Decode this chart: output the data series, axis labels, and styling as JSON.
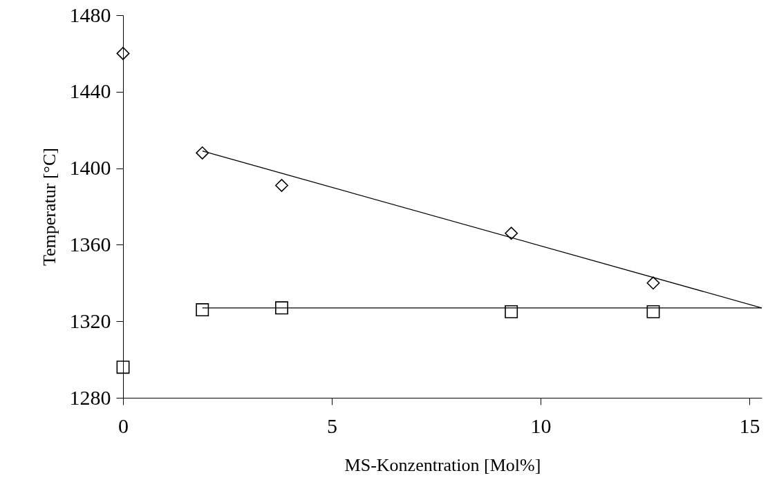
{
  "chart_data": {
    "type": "scatter",
    "xlabel": "MS-Konzentration [Mol%]",
    "ylabel": "Temperatur [°C]",
    "xlim": [
      0,
      15.3
    ],
    "xticks": [
      0,
      5,
      10,
      15
    ],
    "ylim": [
      1280,
      1480
    ],
    "yticks": [
      1280,
      1320,
      1360,
      1400,
      1440,
      1480
    ],
    "grid": false,
    "series": [
      {
        "type": "line",
        "color": "#000000",
        "x": [
          1.9,
          15.3
        ],
        "values": [
          1409,
          1327
        ]
      },
      {
        "type": "line",
        "color": "#000000",
        "x": [
          1.9,
          15.3
        ],
        "values": [
          1327,
          1327
        ]
      },
      {
        "marker": "diamond",
        "color": "#000000",
        "x": [
          0,
          1.9,
          3.8,
          9.3,
          12.7
        ],
        "values": [
          1460,
          1408,
          1391,
          1366,
          1340
        ]
      },
      {
        "marker": "square",
        "color": "#000000",
        "x": [
          0,
          1.9,
          3.8,
          9.3,
          12.7
        ],
        "values": [
          1296,
          1326,
          1327,
          1325,
          1325
        ]
      }
    ]
  }
}
